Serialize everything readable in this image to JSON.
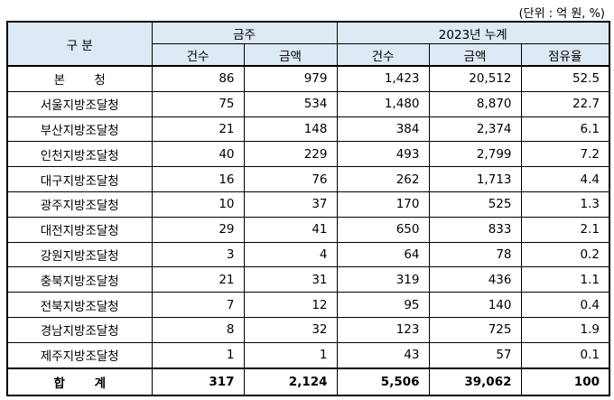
{
  "unit_note": "(단위 : 억 원, %)",
  "header": {
    "category": "구 분",
    "week_group": "금주",
    "cum_group": "2023년 누계",
    "count": "건수",
    "amount": "금액",
    "share": "점유율"
  },
  "rows": [
    {
      "name": "본 청",
      "w_count": "86",
      "w_amount": "979",
      "c_count": "1,423",
      "c_amount": "20,512",
      "share": "52.5"
    },
    {
      "name": "서울지방조달청",
      "w_count": "75",
      "w_amount": "534",
      "c_count": "1,480",
      "c_amount": "8,870",
      "share": "22.7"
    },
    {
      "name": "부산지방조달청",
      "w_count": "21",
      "w_amount": "148",
      "c_count": "384",
      "c_amount": "2,374",
      "share": "6.1"
    },
    {
      "name": "인천지방조달청",
      "w_count": "40",
      "w_amount": "229",
      "c_count": "493",
      "c_amount": "2,799",
      "share": "7.2"
    },
    {
      "name": "대구지방조달청",
      "w_count": "16",
      "w_amount": "76",
      "c_count": "262",
      "c_amount": "1,713",
      "share": "4.4"
    },
    {
      "name": "광주지방조달청",
      "w_count": "10",
      "w_amount": "37",
      "c_count": "170",
      "c_amount": "525",
      "share": "1.3"
    },
    {
      "name": "대전지방조달청",
      "w_count": "29",
      "w_amount": "41",
      "c_count": "650",
      "c_amount": "833",
      "share": "2.1"
    },
    {
      "name": "강원지방조달청",
      "w_count": "3",
      "w_amount": "4",
      "c_count": "64",
      "c_amount": "78",
      "share": "0.2"
    },
    {
      "name": "충북지방조달청",
      "w_count": "21",
      "w_amount": "31",
      "c_count": "319",
      "c_amount": "436",
      "share": "1.1"
    },
    {
      "name": "전북지방조달청",
      "w_count": "7",
      "w_amount": "12",
      "c_count": "95",
      "c_amount": "140",
      "share": "0.4"
    },
    {
      "name": "경남지방조달청",
      "w_count": "8",
      "w_amount": "32",
      "c_count": "123",
      "c_amount": "725",
      "share": "1.9"
    },
    {
      "name": "제주지방조달청",
      "w_count": "1",
      "w_amount": "1",
      "c_count": "43",
      "c_amount": "57",
      "share": "0.1"
    }
  ],
  "total": {
    "name": "합 계",
    "w_count": "317",
    "w_amount": "2,124",
    "c_count": "5,506",
    "c_amount": "39,062",
    "share": "100"
  }
}
